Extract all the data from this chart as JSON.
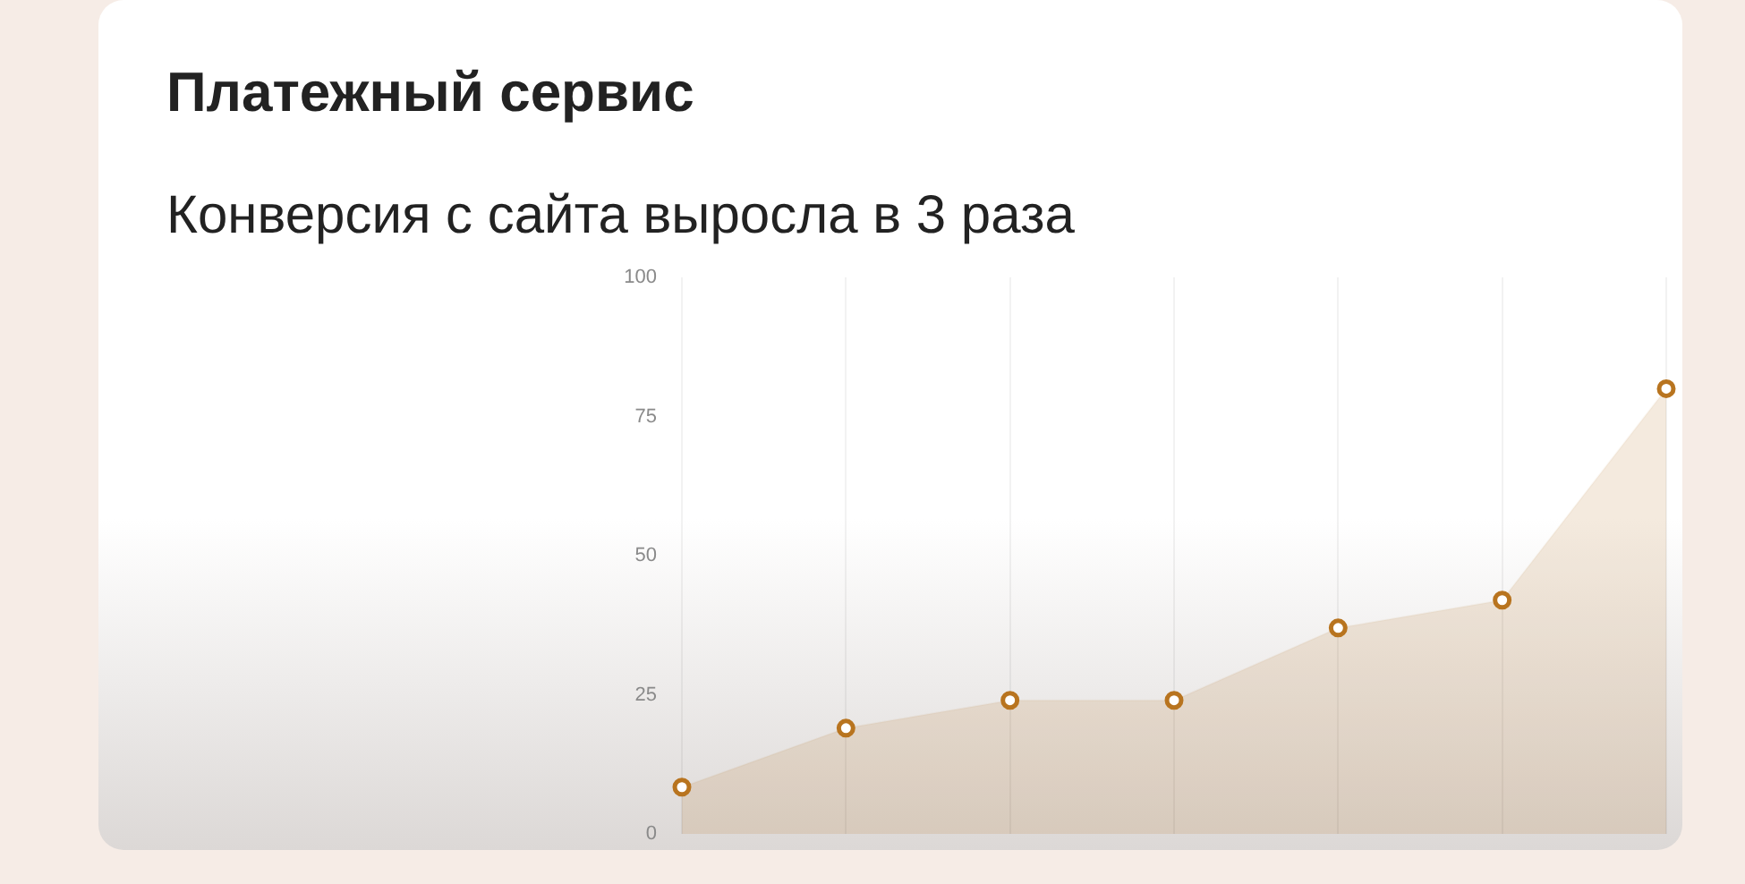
{
  "chart_data": {
    "type": "area",
    "title": "Платежный сервис",
    "subtitle": "Конверсия с сайта выросла в 3 раза",
    "categories": [
      null,
      null,
      null,
      null,
      null,
      null,
      null
    ],
    "series": [
      {
        "color": "#b8741f",
        "values": [
          8.4,
          19,
          24,
          24,
          37,
          42,
          80
        ]
      }
    ],
    "ylim": [
      0,
      100
    ],
    "yticks": [
      0,
      25,
      50,
      75,
      100
    ],
    "grid": "x",
    "marker": "circle",
    "legend": false
  }
}
